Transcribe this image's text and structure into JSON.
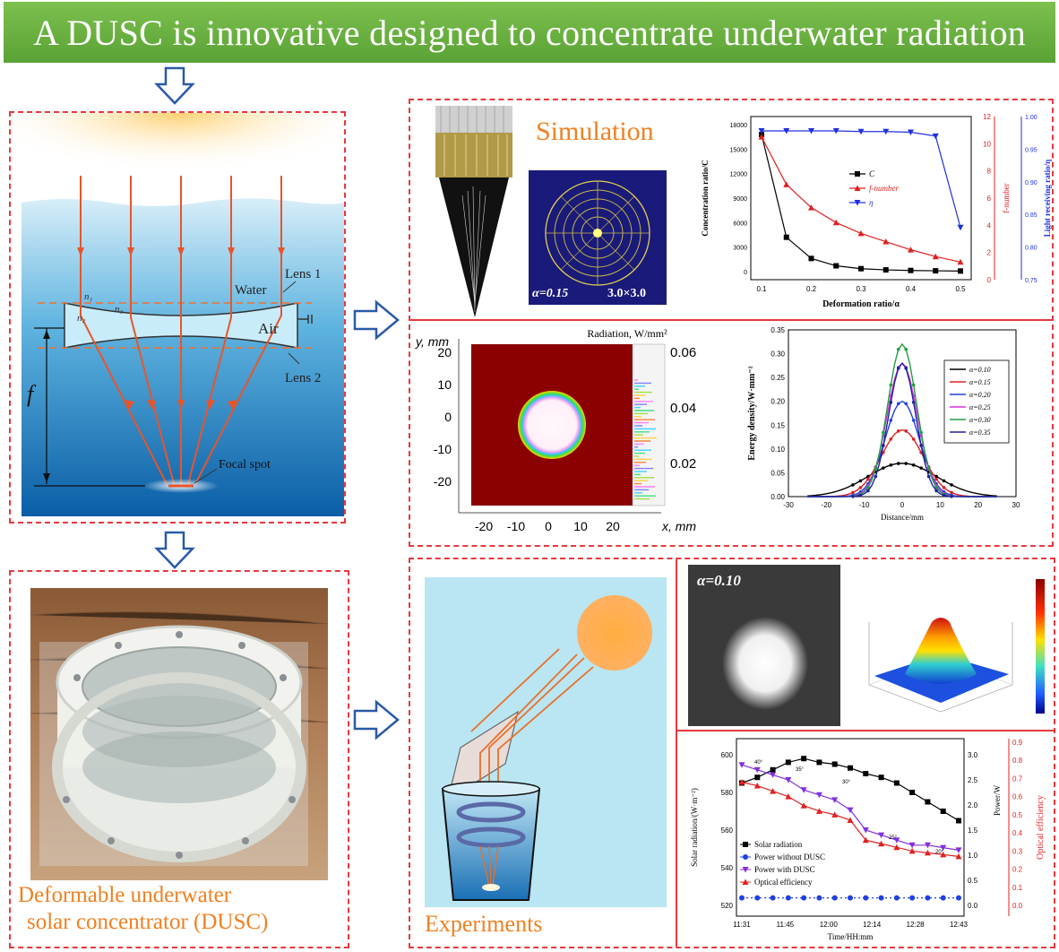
{
  "banner": {
    "title": "A DUSC is innovative designed to concentrate underwater radiation"
  },
  "left_diagram": {
    "labels": {
      "water": "Water",
      "lens1": "Lens 1",
      "air": "Air",
      "lens2": "Lens 2",
      "focal_length": "f",
      "focal_spot": "Focal spot",
      "n1": "n₁",
      "n2": "n₂",
      "n3": "n₃"
    }
  },
  "photo": {
    "caption_line1": "Deformable  underwater",
    "caption_line2": "solar concentrator  (DUSC)"
  },
  "simulation": {
    "title": "Simulation",
    "alpha_label": "α=0.15",
    "grid_label": "3.0×3.0"
  },
  "experiments": {
    "title": "Experiments",
    "alpha_label": "α=0.10"
  },
  "chart_data": [
    {
      "type": "line",
      "title": "",
      "xlabel": "Deformation ratio/α",
      "ylabel_left": "Concentration ratio/C",
      "ylabel_right1": "f-number",
      "ylabel_right2": "Light receiving ratio/η",
      "x": [
        0.1,
        0.15,
        0.2,
        0.25,
        0.3,
        0.35,
        0.4,
        0.45,
        0.5
      ],
      "xticks": [
        "0.1",
        "0.2",
        "0.3",
        "0.4",
        "0.5"
      ],
      "yticks_left": [
        "0",
        "3000",
        "6000",
        "9000",
        "12000",
        "15000",
        "18000"
      ],
      "yticks_right1": [
        "0",
        "2",
        "4",
        "6",
        "8",
        "10",
        "12"
      ],
      "yticks_right2": [
        "0.75",
        "0.80",
        "0.85",
        "0.90",
        "0.95",
        "1.00"
      ],
      "ylim_left": [
        -1000,
        19000
      ],
      "ylim_right1": [
        0,
        12
      ],
      "ylim_right2": [
        0.75,
        1.0
      ],
      "series": [
        {
          "name": "C",
          "axis": "left",
          "color": "#000000",
          "values": [
            16800,
            4200,
            1600,
            700,
            350,
            200,
            130,
            90,
            60
          ]
        },
        {
          "name": "f-number",
          "axis": "right1",
          "color": "#e02020",
          "values": [
            10.5,
            7.0,
            5.3,
            4.2,
            3.4,
            2.8,
            2.2,
            1.7,
            1.3
          ]
        },
        {
          "name": "η",
          "axis": "right2",
          "color": "#2030e0",
          "values": [
            0.978,
            0.978,
            0.978,
            0.978,
            0.977,
            0.977,
            0.976,
            0.97,
            0.83
          ]
        }
      ]
    },
    {
      "type": "heatmap",
      "title": "Radiation, W/mm²",
      "xlabel": "x, mm",
      "ylabel": "y, mm",
      "xticks": [
        "-20",
        "-10",
        "0",
        "10",
        "20"
      ],
      "yticks": [
        "20",
        "10",
        "0",
        "-10",
        "-20"
      ],
      "colorbar_ticks": [
        "0.06",
        "0.04",
        "0.02"
      ]
    },
    {
      "type": "line",
      "title": "",
      "xlabel": "Distance/mm",
      "ylabel": "Energy density/W·mm⁻²",
      "xlim": [
        -30,
        30
      ],
      "ylim": [
        0,
        0.35
      ],
      "xticks": [
        "-30",
        "-20",
        "-10",
        "0",
        "10",
        "20",
        "30"
      ],
      "yticks": [
        "0.00",
        "0.05",
        "0.10",
        "0.15",
        "0.20",
        "0.25",
        "0.30",
        "0.35"
      ],
      "series": [
        {
          "name": "α=0.10",
          "color": "#000000",
          "peak": 0.07,
          "width": 9.0
        },
        {
          "name": "α=0.15",
          "color": "#e02020",
          "peak": 0.14,
          "width": 5.5
        },
        {
          "name": "α=0.20",
          "color": "#2040e0",
          "peak": 0.2,
          "width": 4.5
        },
        {
          "name": "α=0.25",
          "color": "#e030e0",
          "peak": 0.28,
          "width": 4.0
        },
        {
          "name": "α=0.30",
          "color": "#20a040",
          "peak": 0.32,
          "width": 3.8
        },
        {
          "name": "α=0.35",
          "color": "#2020a0",
          "peak": 0.28,
          "width": 3.6
        }
      ]
    },
    {
      "type": "line",
      "title": "",
      "xlabel": "Time/HH:mm",
      "ylabel_left": "Solar radiation/(W·m⁻²)",
      "ylabel_right1": "Power/W",
      "ylabel_right2": "Optical efficiency",
      "xticks": [
        "11:31",
        "11:45",
        "12:00",
        "12:14",
        "12:28",
        "12:43"
      ],
      "yticks_left": [
        "520",
        "540",
        "560",
        "580",
        "600"
      ],
      "yticks_right1": [
        "0.0",
        "0.5",
        "1.0",
        "1.5",
        "2.0",
        "2.5",
        "3.0"
      ],
      "yticks_right2": [
        "0.0",
        "0.1",
        "0.2",
        "0.3",
        "0.4",
        "0.5",
        "0.6",
        "0.7",
        "0.8",
        "0.9"
      ],
      "annotations": [
        "40°",
        "35°",
        "30°",
        "25°",
        "20°"
      ],
      "series": [
        {
          "name": "Solar radiation",
          "color": "#000000",
          "values": [
            585,
            588,
            592,
            596,
            598,
            596,
            595,
            593,
            590,
            588,
            585,
            580,
            575,
            570,
            565
          ]
        },
        {
          "name": "Power without  DUSC",
          "color": "#2040e0",
          "values": [
            0.15,
            0.15,
            0.15,
            0.15,
            0.15,
            0.15,
            0.15,
            0.15,
            0.15,
            0.15,
            0.15,
            0.15,
            0.15,
            0.15,
            0.15
          ]
        },
        {
          "name": "Power with DUSC",
          "color": "#8030e0",
          "values": [
            2.8,
            2.7,
            2.6,
            2.5,
            2.3,
            2.2,
            2.1,
            1.9,
            1.5,
            1.4,
            1.3,
            1.2,
            1.2,
            1.15,
            1.1
          ]
        },
        {
          "name": "Optical efficiency",
          "color": "#e02020",
          "values": [
            0.68,
            0.66,
            0.63,
            0.6,
            0.55,
            0.52,
            0.5,
            0.47,
            0.36,
            0.34,
            0.32,
            0.3,
            0.29,
            0.28,
            0.27
          ]
        }
      ]
    }
  ]
}
